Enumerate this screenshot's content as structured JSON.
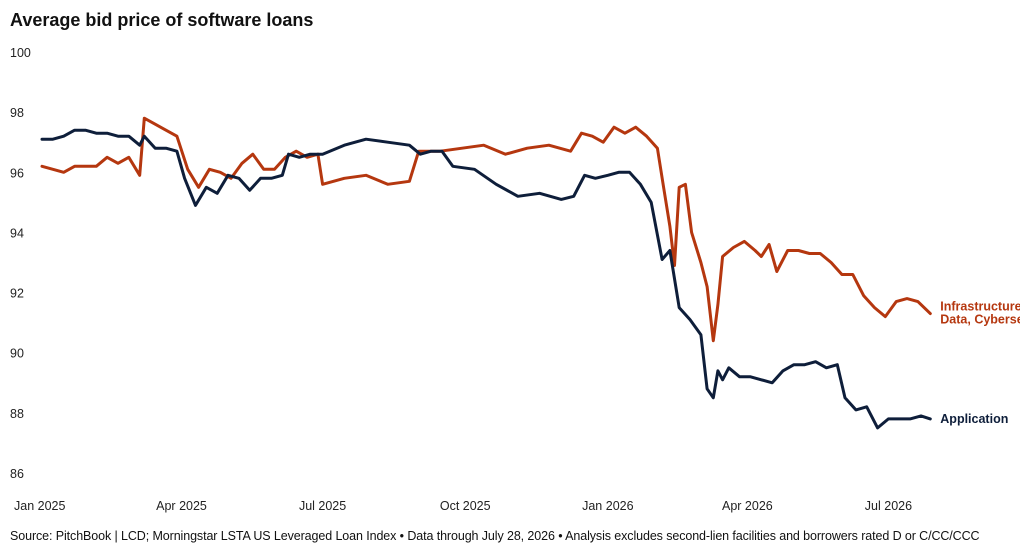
{
  "chart_data": {
    "type": "line",
    "title": "Average bid price of software loans",
    "xlabel": "",
    "ylabel": "",
    "ylim": [
      86,
      100
    ],
    "yticks": [
      86,
      88,
      90,
      92,
      94,
      96,
      98,
      100
    ],
    "xlim": [
      "2025-01-01",
      "2026-08-31"
    ],
    "xticks": [
      {
        "date": "2025-01-01",
        "label": "Jan 2025"
      },
      {
        "date": "2025-04-01",
        "label": "Apr 2025"
      },
      {
        "date": "2025-07-01",
        "label": "Jul 2025"
      },
      {
        "date": "2025-10-01",
        "label": "Oct 2025"
      },
      {
        "date": "2026-01-01",
        "label": "Jan 2026"
      },
      {
        "date": "2026-04-01",
        "label": "Apr 2026"
      },
      {
        "date": "2026-07-01",
        "label": "Jul 2026"
      }
    ],
    "grid": false,
    "legend": "direct labels at line ends",
    "series": [
      {
        "name": "Infrastructure & Data, Cybersecurity",
        "label_lines": [
          "Infrastructure &",
          "Data, Cybersecurity"
        ],
        "color": "#b5370f",
        "points": [
          [
            "2025-01-01",
            96.2
          ],
          [
            "2025-01-08",
            96.1
          ],
          [
            "2025-01-15",
            96.0
          ],
          [
            "2025-01-22",
            96.2
          ],
          [
            "2025-01-29",
            96.2
          ],
          [
            "2025-02-05",
            96.2
          ],
          [
            "2025-02-12",
            96.5
          ],
          [
            "2025-02-19",
            96.3
          ],
          [
            "2025-02-26",
            96.5
          ],
          [
            "2025-03-05",
            95.9
          ],
          [
            "2025-03-08",
            97.8
          ],
          [
            "2025-03-15",
            97.6
          ],
          [
            "2025-03-22",
            97.4
          ],
          [
            "2025-03-29",
            97.2
          ],
          [
            "2025-04-05",
            96.1
          ],
          [
            "2025-04-12",
            95.5
          ],
          [
            "2025-04-19",
            96.1
          ],
          [
            "2025-04-26",
            96.0
          ],
          [
            "2025-05-03",
            95.8
          ],
          [
            "2025-05-10",
            96.3
          ],
          [
            "2025-05-17",
            96.6
          ],
          [
            "2025-05-24",
            96.1
          ],
          [
            "2025-05-31",
            96.1
          ],
          [
            "2025-06-07",
            96.5
          ],
          [
            "2025-06-14",
            96.7
          ],
          [
            "2025-06-21",
            96.5
          ],
          [
            "2025-06-28",
            96.6
          ],
          [
            "2025-07-01",
            95.6
          ],
          [
            "2025-07-15",
            95.8
          ],
          [
            "2025-07-29",
            95.9
          ],
          [
            "2025-08-12",
            95.6
          ],
          [
            "2025-08-26",
            95.7
          ],
          [
            "2025-09-01",
            96.7
          ],
          [
            "2025-09-15",
            96.7
          ],
          [
            "2025-09-29",
            96.8
          ],
          [
            "2025-10-13",
            96.9
          ],
          [
            "2025-10-27",
            96.6
          ],
          [
            "2025-11-10",
            96.8
          ],
          [
            "2025-11-24",
            96.9
          ],
          [
            "2025-12-08",
            96.7
          ],
          [
            "2025-12-15",
            97.3
          ],
          [
            "2025-12-22",
            97.2
          ],
          [
            "2025-12-29",
            97.0
          ],
          [
            "2026-01-05",
            97.5
          ],
          [
            "2026-01-12",
            97.3
          ],
          [
            "2026-01-19",
            97.5
          ],
          [
            "2026-01-26",
            97.2
          ],
          [
            "2026-02-02",
            96.8
          ],
          [
            "2026-02-06",
            95.5
          ],
          [
            "2026-02-10",
            94.2
          ],
          [
            "2026-02-13",
            92.9
          ],
          [
            "2026-02-16",
            95.5
          ],
          [
            "2026-02-20",
            95.6
          ],
          [
            "2026-02-24",
            94.0
          ],
          [
            "2026-03-02",
            93.0
          ],
          [
            "2026-03-06",
            92.2
          ],
          [
            "2026-03-10",
            90.4
          ],
          [
            "2026-03-13",
            91.6
          ],
          [
            "2026-03-16",
            93.2
          ],
          [
            "2026-03-23",
            93.5
          ],
          [
            "2026-03-30",
            93.7
          ],
          [
            "2026-04-06",
            93.4
          ],
          [
            "2026-04-10",
            93.2
          ],
          [
            "2026-04-15",
            93.6
          ],
          [
            "2026-04-20",
            92.7
          ],
          [
            "2026-04-27",
            93.4
          ],
          [
            "2026-05-04",
            93.4
          ],
          [
            "2026-05-11",
            93.3
          ],
          [
            "2026-05-18",
            93.3
          ],
          [
            "2026-05-25",
            93.0
          ],
          [
            "2026-06-01",
            92.6
          ],
          [
            "2026-06-08",
            92.6
          ],
          [
            "2026-06-15",
            91.9
          ],
          [
            "2026-06-22",
            91.5
          ],
          [
            "2026-06-29",
            91.2
          ],
          [
            "2026-07-06",
            91.7
          ],
          [
            "2026-07-13",
            91.8
          ],
          [
            "2026-07-20",
            91.7
          ],
          [
            "2026-07-28",
            91.3
          ]
        ]
      },
      {
        "name": "Application",
        "label_lines": [
          "Application"
        ],
        "color": "#0e1e3a",
        "points": [
          [
            "2025-01-01",
            97.1
          ],
          [
            "2025-01-08",
            97.1
          ],
          [
            "2025-01-15",
            97.2
          ],
          [
            "2025-01-22",
            97.4
          ],
          [
            "2025-01-29",
            97.4
          ],
          [
            "2025-02-05",
            97.3
          ],
          [
            "2025-02-12",
            97.3
          ],
          [
            "2025-02-19",
            97.2
          ],
          [
            "2025-02-26",
            97.2
          ],
          [
            "2025-03-05",
            96.9
          ],
          [
            "2025-03-08",
            97.2
          ],
          [
            "2025-03-15",
            96.8
          ],
          [
            "2025-03-22",
            96.8
          ],
          [
            "2025-03-29",
            96.7
          ],
          [
            "2025-04-03",
            95.8
          ],
          [
            "2025-04-10",
            94.9
          ],
          [
            "2025-04-17",
            95.5
          ],
          [
            "2025-04-24",
            95.3
          ],
          [
            "2025-05-01",
            95.9
          ],
          [
            "2025-05-08",
            95.8
          ],
          [
            "2025-05-15",
            95.4
          ],
          [
            "2025-05-22",
            95.8
          ],
          [
            "2025-05-29",
            95.8
          ],
          [
            "2025-06-05",
            95.9
          ],
          [
            "2025-06-09",
            96.6
          ],
          [
            "2025-06-16",
            96.5
          ],
          [
            "2025-06-23",
            96.6
          ],
          [
            "2025-07-01",
            96.6
          ],
          [
            "2025-07-15",
            96.9
          ],
          [
            "2025-07-29",
            97.1
          ],
          [
            "2025-08-12",
            97.0
          ],
          [
            "2025-08-26",
            96.9
          ],
          [
            "2025-09-02",
            96.6
          ],
          [
            "2025-09-09",
            96.7
          ],
          [
            "2025-09-16",
            96.7
          ],
          [
            "2025-09-23",
            96.2
          ],
          [
            "2025-10-07",
            96.1
          ],
          [
            "2025-10-21",
            95.6
          ],
          [
            "2025-11-04",
            95.2
          ],
          [
            "2025-11-18",
            95.3
          ],
          [
            "2025-12-02",
            95.1
          ],
          [
            "2025-12-10",
            95.2
          ],
          [
            "2025-12-17",
            95.9
          ],
          [
            "2025-12-24",
            95.8
          ],
          [
            "2026-01-01",
            95.9
          ],
          [
            "2026-01-08",
            96.0
          ],
          [
            "2026-01-15",
            96.0
          ],
          [
            "2026-01-22",
            95.6
          ],
          [
            "2026-01-29",
            95.0
          ],
          [
            "2026-02-05",
            93.1
          ],
          [
            "2026-02-10",
            93.4
          ],
          [
            "2026-02-16",
            91.5
          ],
          [
            "2026-02-23",
            91.1
          ],
          [
            "2026-03-02",
            90.6
          ],
          [
            "2026-03-06",
            88.8
          ],
          [
            "2026-03-10",
            88.5
          ],
          [
            "2026-03-13",
            89.4
          ],
          [
            "2026-03-16",
            89.1
          ],
          [
            "2026-03-20",
            89.5
          ],
          [
            "2026-03-27",
            89.2
          ],
          [
            "2026-04-03",
            89.2
          ],
          [
            "2026-04-10",
            89.1
          ],
          [
            "2026-04-17",
            89.0
          ],
          [
            "2026-04-24",
            89.4
          ],
          [
            "2026-05-01",
            89.6
          ],
          [
            "2026-05-08",
            89.6
          ],
          [
            "2026-05-15",
            89.7
          ],
          [
            "2026-05-22",
            89.5
          ],
          [
            "2026-05-29",
            89.6
          ],
          [
            "2026-06-03",
            88.5
          ],
          [
            "2026-06-10",
            88.1
          ],
          [
            "2026-06-17",
            88.2
          ],
          [
            "2026-06-24",
            87.5
          ],
          [
            "2026-07-01",
            87.8
          ],
          [
            "2026-07-08",
            87.8
          ],
          [
            "2026-07-15",
            87.8
          ],
          [
            "2026-07-22",
            87.9
          ],
          [
            "2026-07-28",
            87.8
          ]
        ]
      }
    ]
  },
  "source_note": "Source: PitchBook | LCD; Morningstar LSTA US Leveraged Loan Index • Data through July 28, 2026 • Analysis excludes second-lien facilities and borrowers rated D or C/CC/CCC"
}
